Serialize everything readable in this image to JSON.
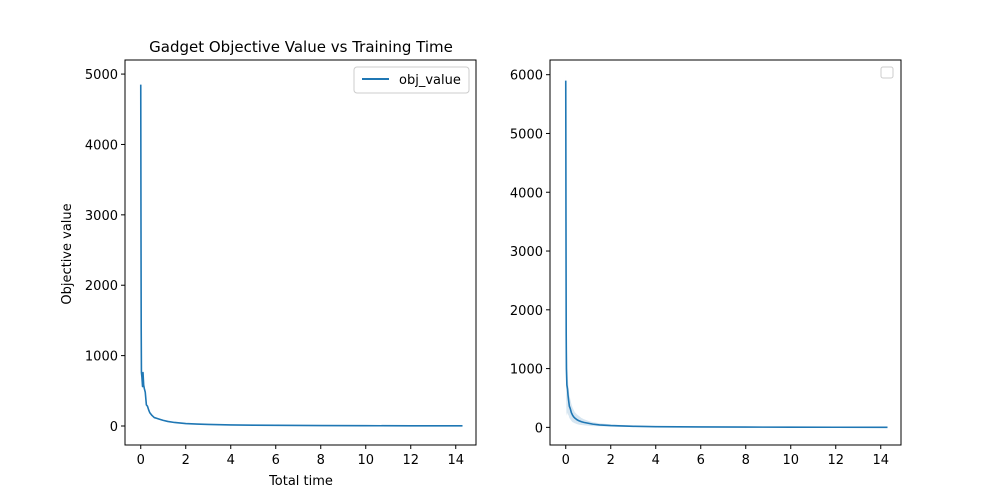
{
  "colors": {
    "series": "#1f77b4",
    "band": "#1f77b4"
  },
  "chart_data": [
    {
      "type": "line",
      "title": "Gadget Objective Value vs Training Time",
      "xlabel": "Total time",
      "ylabel": "Objective value",
      "xlim": [
        -0.7,
        14.9
      ],
      "ylim": [
        -270,
        5200
      ],
      "xticks": [
        0,
        2,
        4,
        6,
        8,
        10,
        12,
        14
      ],
      "yticks": [
        0,
        1000,
        2000,
        3000,
        4000,
        5000
      ],
      "legend": {
        "position": "top-right",
        "entries": [
          "obj_value"
        ]
      },
      "series": [
        {
          "name": "obj_value",
          "x": [
            0.0,
            0.01,
            0.02,
            0.03,
            0.05,
            0.08,
            0.1,
            0.13,
            0.16,
            0.2,
            0.25,
            0.3,
            0.35,
            0.4,
            0.5,
            0.6,
            0.7,
            0.8,
            1.0,
            1.2,
            1.5,
            2.0,
            2.5,
            3.0,
            4.0,
            5.0,
            6.0,
            8.0,
            10.0,
            12.0,
            14.3
          ],
          "y": [
            4850,
            3000,
            1400,
            760,
            700,
            560,
            760,
            580,
            530,
            480,
            300,
            280,
            230,
            190,
            150,
            120,
            110,
            100,
            80,
            65,
            50,
            35,
            28,
            22,
            15,
            12,
            9,
            6,
            4,
            3,
            2
          ]
        }
      ]
    },
    {
      "type": "area",
      "title": "",
      "xlabel": "",
      "ylabel": "",
      "xlim": [
        -0.7,
        14.9
      ],
      "ylim": [
        -300,
        6250
      ],
      "xticks": [
        0,
        2,
        4,
        6,
        8,
        10,
        12,
        14
      ],
      "yticks": [
        0,
        1000,
        2000,
        3000,
        4000,
        5000,
        6000
      ],
      "legend": {
        "position": "top-right",
        "entries": []
      },
      "series": [
        {
          "x": [
            0.0,
            0.01,
            0.02,
            0.03,
            0.05,
            0.08,
            0.1,
            0.13,
            0.16,
            0.2,
            0.25,
            0.3,
            0.35,
            0.4,
            0.5,
            0.6,
            0.7,
            0.8,
            1.0,
            1.2,
            1.5,
            2.0,
            2.5,
            3.0,
            4.0,
            5.0,
            6.0,
            8.0,
            10.0,
            12.0,
            14.3
          ],
          "y": [
            5900,
            3500,
            1600,
            1000,
            720,
            650,
            550,
            450,
            360,
            320,
            250,
            210,
            180,
            160,
            130,
            110,
            95,
            85,
            70,
            55,
            42,
            30,
            24,
            18,
            12,
            9,
            7,
            5,
            3,
            2,
            1
          ],
          "upper": [
            6000,
            5500,
            4000,
            2500,
            1400,
            1000,
            800,
            650,
            550,
            480,
            400,
            340,
            300,
            260,
            220,
            190,
            160,
            140,
            110,
            90,
            70,
            50,
            40,
            32,
            22,
            16,
            12,
            8,
            5,
            4,
            3
          ],
          "lower": [
            3000,
            1200,
            500,
            250,
            200,
            250,
            220,
            200,
            160,
            140,
            110,
            90,
            80,
            70,
            55,
            45,
            40,
            35,
            28,
            22,
            18,
            12,
            9,
            7,
            5,
            3,
            2,
            1,
            1,
            0,
            0
          ]
        }
      ]
    }
  ]
}
